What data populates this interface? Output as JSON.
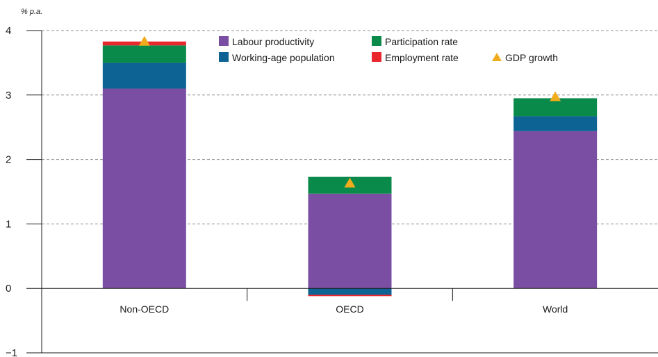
{
  "chart_data": {
    "type": "bar",
    "stacked": true,
    "unit": "% p.a.",
    "categories": [
      "Non-OECD",
      "OECD",
      "World"
    ],
    "ylim": [
      -1,
      4
    ],
    "yticks": [
      -1,
      0,
      1,
      2,
      3,
      4
    ],
    "ytick_labels": [
      "−1",
      "0",
      "1",
      "2",
      "3",
      "4"
    ],
    "grid": "horizontal dashed",
    "legend_position": "top-center",
    "series": [
      {
        "name": "Labour productivity",
        "color": "#7a4fa3",
        "values": [
          3.1,
          1.47,
          2.44
        ]
      },
      {
        "name": "Working-age population",
        "color": "#0c6394",
        "values": [
          0.4,
          -0.1,
          0.23
        ]
      },
      {
        "name": "Participation rate",
        "color": "#0a8a4a",
        "values": [
          0.27,
          0.26,
          0.28
        ]
      },
      {
        "name": "Employment rate",
        "color": "#e8262b",
        "values": [
          0.06,
          -0.02,
          0.0
        ]
      }
    ],
    "markers": {
      "name": "GDP growth",
      "color": "#f0ac1d",
      "shape": "triangle",
      "values": [
        3.83,
        1.63,
        2.97
      ]
    },
    "legend_order": [
      "Labour productivity",
      "Participation rate",
      "Working-age population",
      "Employment rate",
      "GDP growth"
    ]
  }
}
